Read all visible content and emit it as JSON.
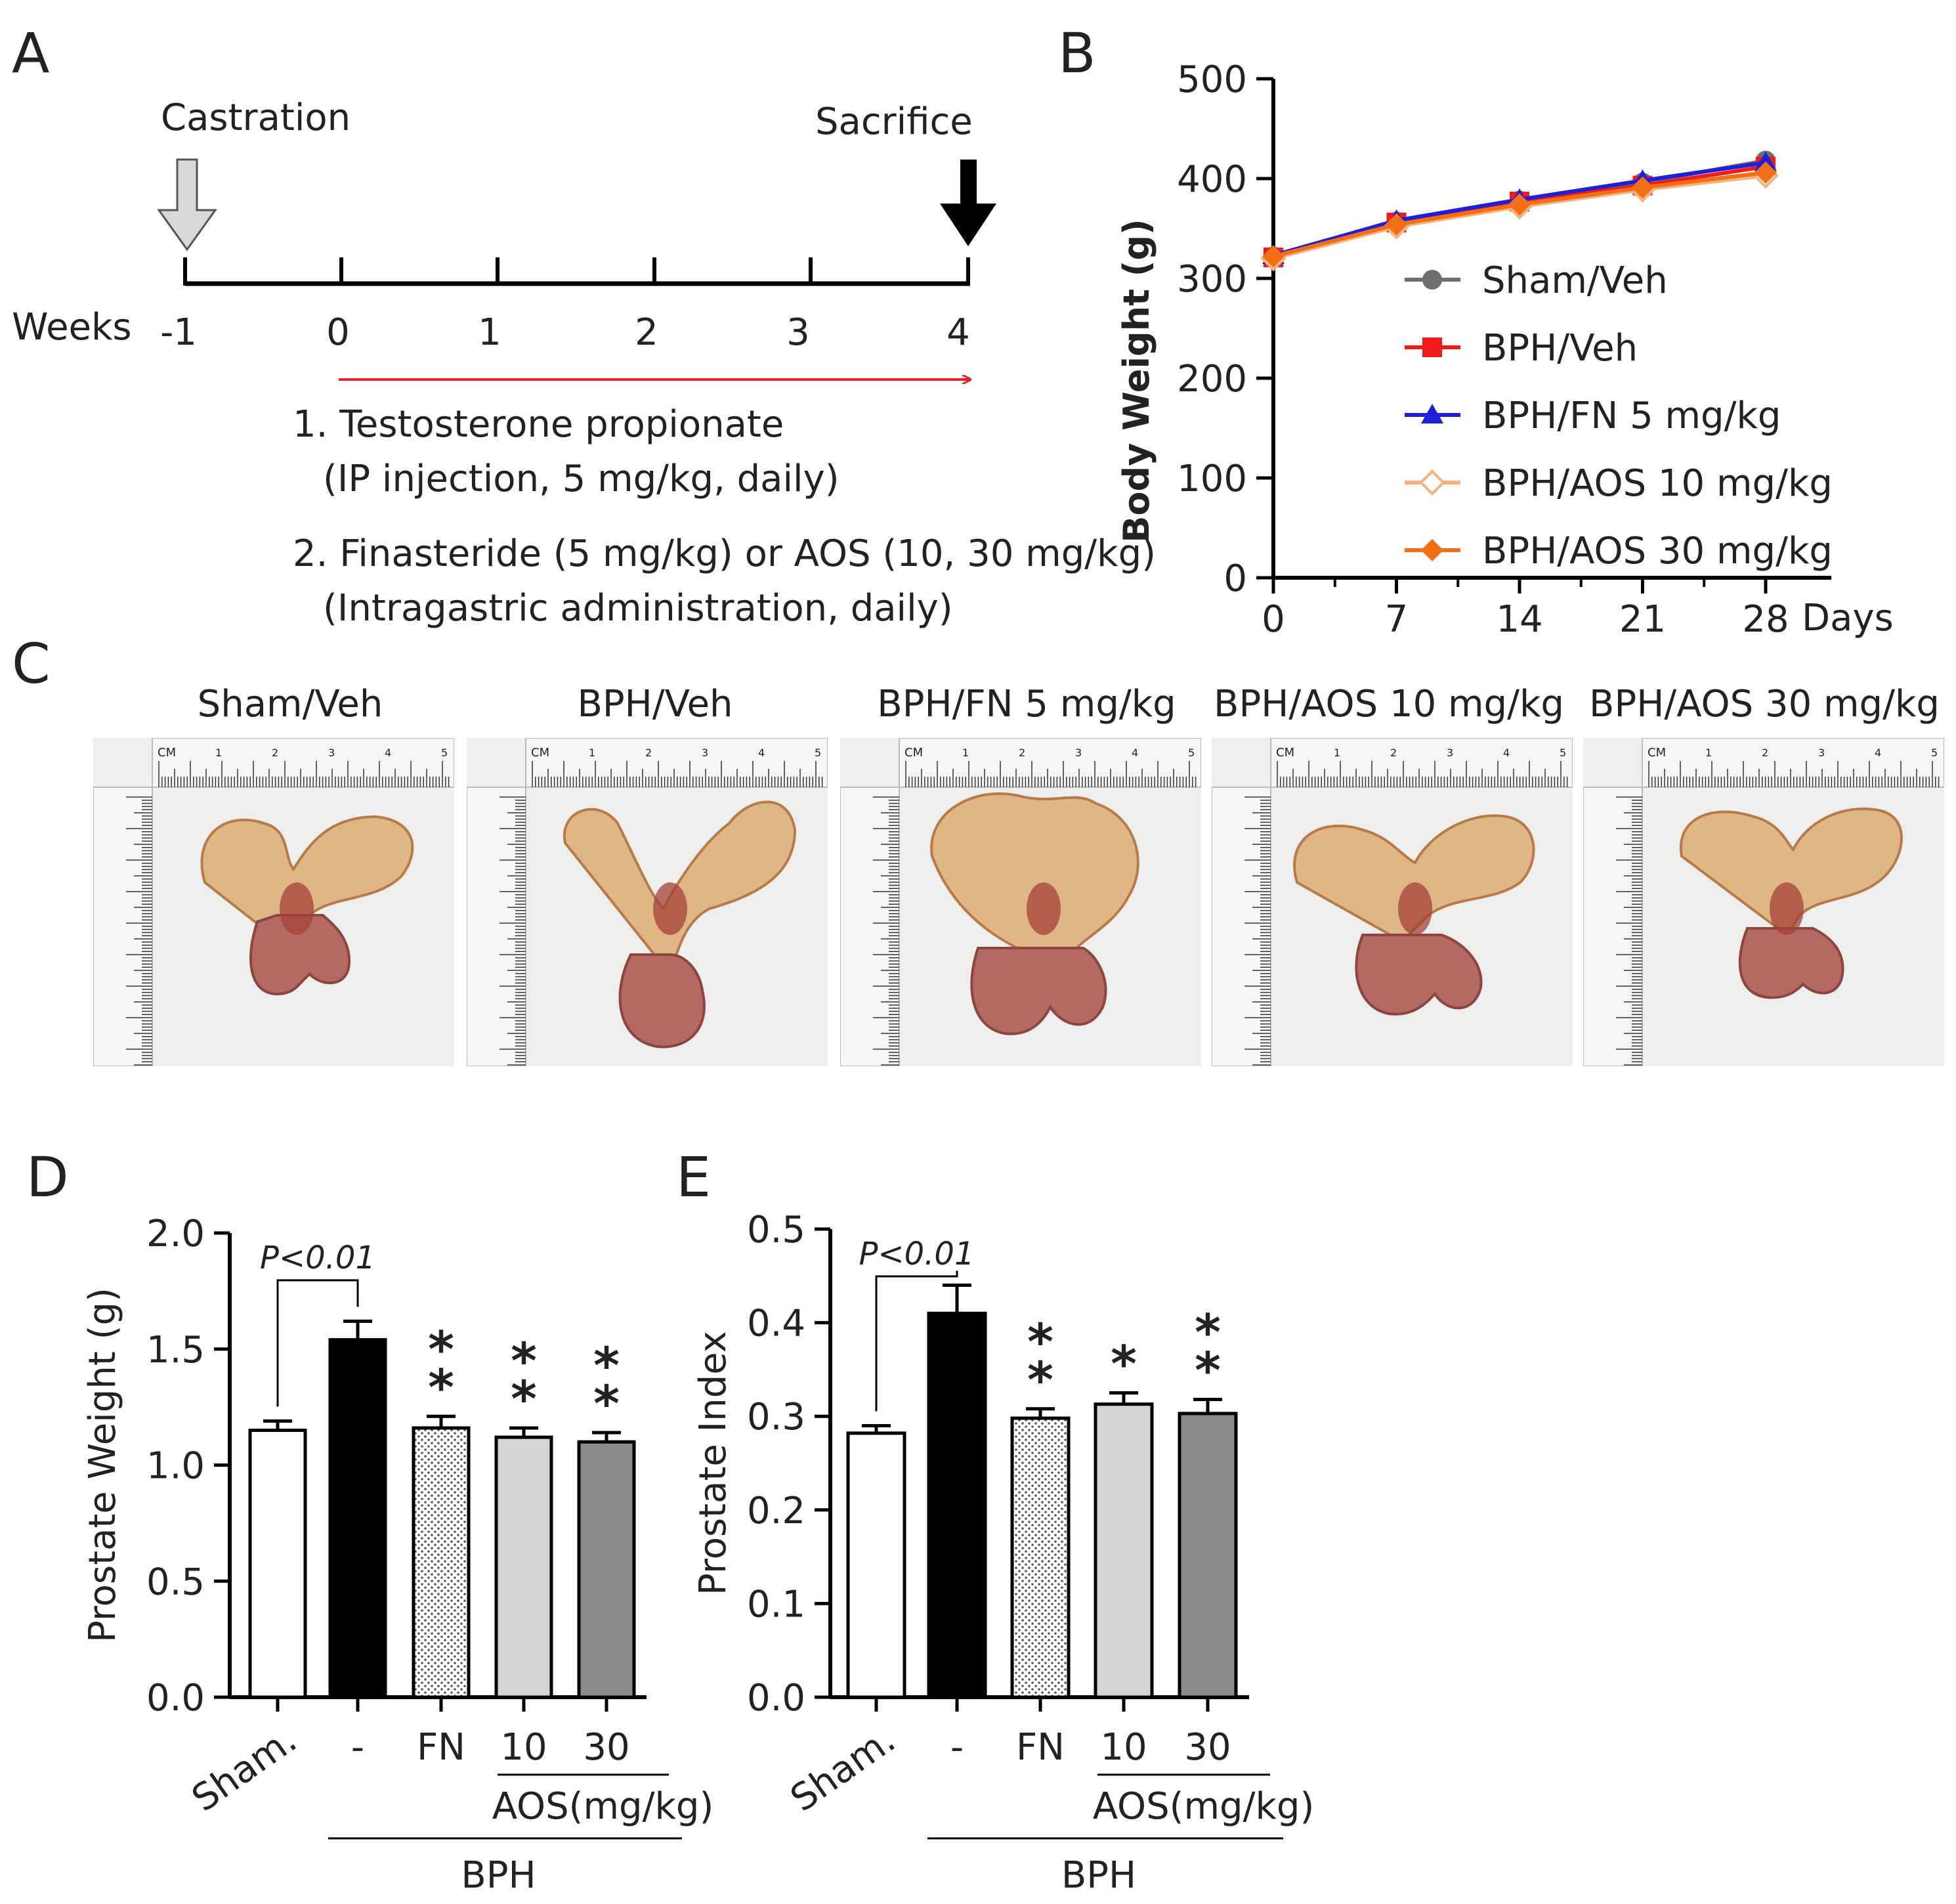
{
  "panels": {
    "A": "A",
    "B": "B",
    "C": "C",
    "D": "D",
    "E": "E"
  },
  "timeline": {
    "castration_label": "Castration",
    "sacrifice_label": "Sacrifice",
    "axis_label": "Weeks",
    "ticks": [
      "-1",
      "0",
      "1",
      "2",
      "3",
      "4"
    ],
    "treatment_lines": [
      "1. Testosterone propionate",
      "(IP injection, 5 mg/kg, daily)",
      "2. Finasteride (5 mg/kg) or AOS (10, 30 mg/kg)",
      "(Intragastric administration, daily)"
    ]
  },
  "photos": {
    "titles": [
      "Sham/Veh",
      "BPH/Veh",
      "BPH/FN 5 mg/kg",
      "BPH/AOS 10 mg/kg",
      "BPH/AOS 30 mg/kg"
    ],
    "ruler_label": "CM",
    "ruler_numbers": [
      "1",
      "2",
      "3",
      "4",
      "5"
    ]
  },
  "colors": {
    "sham": "#6e6e6e",
    "bph": "#ee1c1c",
    "fn": "#1f1fd8",
    "aos10": "#f7b27a",
    "aos30": "#f36f17",
    "bar_aos10": "#d4d4d4",
    "bar_aos30": "#8a8a8a",
    "red_arrow": "#e0242c"
  },
  "chart_data": [
    {
      "panel": "B",
      "type": "line",
      "ylabel": "Body Weight (g)",
      "xlabel": "Days",
      "x": [
        0,
        7,
        14,
        21,
        28
      ],
      "xticks": [
        "0",
        "7",
        "14",
        "21",
        "28"
      ],
      "ylim": [
        0,
        500
      ],
      "yticks": [
        "0",
        "100",
        "200",
        "300",
        "400",
        "500"
      ],
      "legend_position": "right",
      "series": [
        {
          "name": "Sham/Veh",
          "values": [
            322,
            357,
            378,
            396,
            418
          ],
          "marker": "circle"
        },
        {
          "name": "BPH/Veh",
          "values": [
            321,
            356,
            377,
            393,
            412
          ],
          "marker": "square"
        },
        {
          "name": "BPH/FN 5 mg/kg",
          "values": [
            323,
            358,
            379,
            398,
            416
          ],
          "marker": "triangle"
        },
        {
          "name": "BPH/AOS 10 mg/kg",
          "values": [
            320,
            352,
            372,
            389,
            403
          ],
          "marker": "diamond-open"
        },
        {
          "name": "BPH/AOS 30 mg/kg",
          "values": [
            322,
            354,
            374,
            391,
            406
          ],
          "marker": "diamond"
        }
      ]
    },
    {
      "panel": "D",
      "type": "bar",
      "ylabel": "Prostate Weight (g)",
      "ylim": [
        0,
        2.0
      ],
      "yticks": [
        "0.0",
        "0.5",
        "1.0",
        "1.5",
        "2.0"
      ],
      "categories": [
        "Sham.",
        "-",
        "FN",
        "10",
        "30"
      ],
      "values": [
        1.15,
        1.54,
        1.16,
        1.12,
        1.1
      ],
      "errors": [
        0.04,
        0.08,
        0.05,
        0.04,
        0.04
      ],
      "significance": [
        "",
        "",
        "**",
        "**",
        "**"
      ],
      "p_label": "P<0.01",
      "group_labels": {
        "aos": "AOS(mg/kg)",
        "bph": "BPH"
      }
    },
    {
      "panel": "E",
      "type": "bar",
      "ylabel": "Prostate Index",
      "ylim": [
        0,
        0.5
      ],
      "yticks": [
        "0.0",
        "0.1",
        "0.2",
        "0.3",
        "0.4",
        "0.5"
      ],
      "categories": [
        "Sham.",
        "-",
        "FN",
        "10",
        "30"
      ],
      "values": [
        0.282,
        0.41,
        0.298,
        0.313,
        0.303
      ],
      "errors": [
        0.008,
        0.03,
        0.01,
        0.012,
        0.015
      ],
      "significance": [
        "",
        "",
        "**",
        "*",
        "**"
      ],
      "p_label": "P<0.01",
      "group_labels": {
        "aos": "AOS(mg/kg)",
        "bph": "BPH"
      }
    }
  ]
}
